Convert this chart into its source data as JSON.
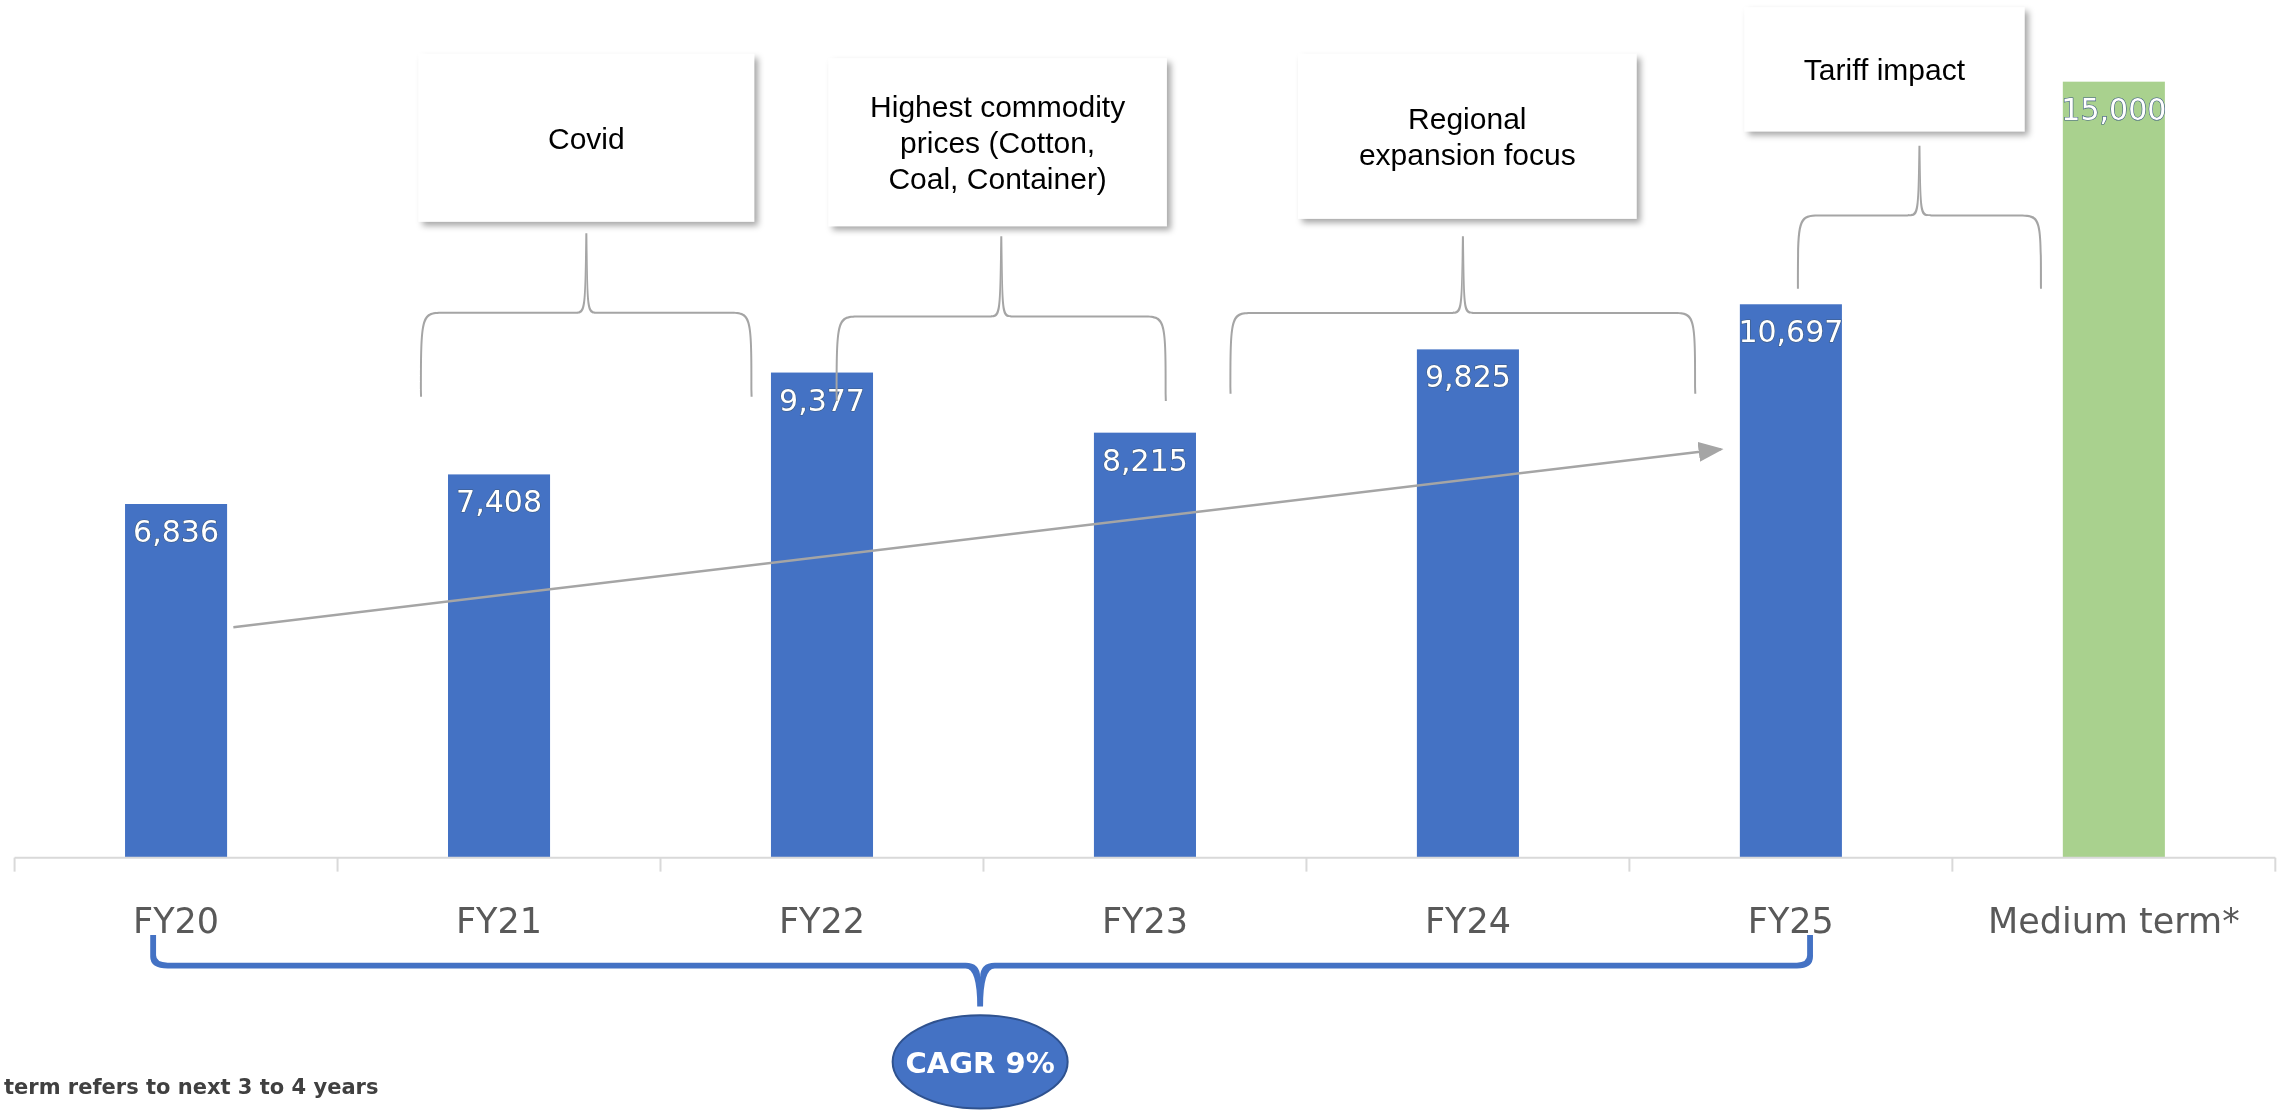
{
  "chart_data": {
    "type": "bar",
    "categories": [
      "FY20",
      "FY21",
      "FY22",
      "FY23",
      "FY24",
      "FY25",
      "Medium term*"
    ],
    "values": [
      6836,
      7408,
      9377,
      8215,
      9825,
      10697,
      15000
    ],
    "colors": [
      "#4472c4",
      "#4472c4",
      "#4472c4",
      "#4472c4",
      "#4472c4",
      "#4472c4",
      "#a9d18e"
    ],
    "value_labels": [
      "6,836",
      "7,408",
      "9,377",
      "8,215",
      "9,825",
      "10,697",
      "15,000"
    ],
    "annotations": [
      "Covid",
      "Highest commodity prices (Cotton, Coal, Container)",
      "Regional expansion focus",
      "Tariff impact",
      "CAGR 9%",
      "term refers to next 3 to 4 years"
    ]
  }
}
